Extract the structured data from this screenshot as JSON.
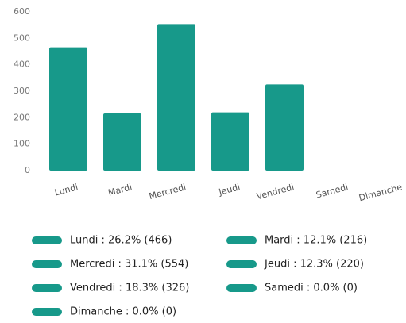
{
  "chart_data": {
    "type": "bar",
    "categories": [
      "Lundi",
      "Mardi",
      "Mercredi",
      "Jeudi",
      "Vendredi",
      "Samedi",
      "Dimanche"
    ],
    "values": [
      466,
      216,
      554,
      220,
      326,
      0,
      0
    ],
    "value_labels": [
      "Lundi : 26.2% (466)",
      "Mardi : 12.1% (216)",
      "Mercredi : 31.1% (554)",
      "Jeudi : 12.3% (220)",
      "Vendredi : 18.3% (326)",
      "Samedi : 0.0% (0)",
      "Dimanche : 0.0% (0)"
    ],
    "color": "#17998a",
    "ylim": [
      0,
      600
    ],
    "yticks": [
      0,
      100,
      200,
      300,
      400,
      500,
      600
    ],
    "grid": false,
    "legend": "bottom"
  }
}
